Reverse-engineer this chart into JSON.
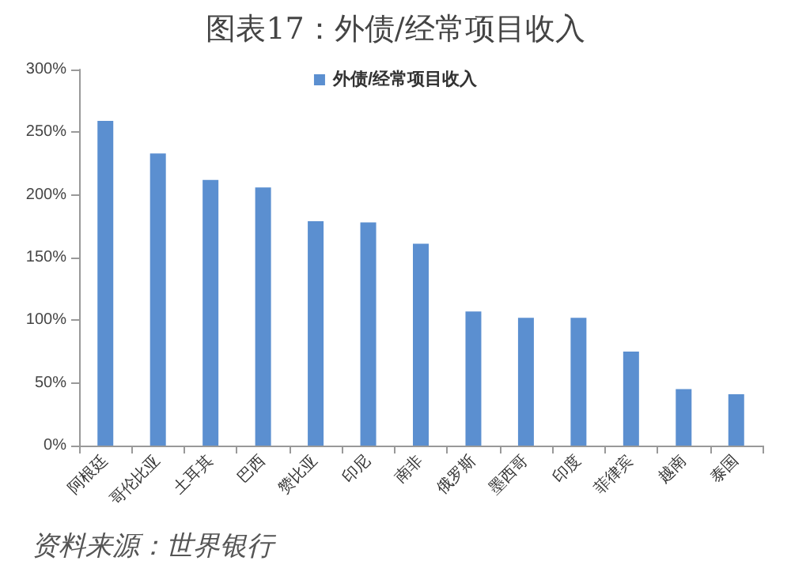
{
  "chart_data": {
    "type": "bar",
    "title": "图表17：外债/经常项目收入",
    "categories": [
      "阿根廷",
      "哥伦比亚",
      "土耳其",
      "巴西",
      "赞比亚",
      "印尼",
      "南非",
      "俄罗斯",
      "墨西哥",
      "印度",
      "菲律宾",
      "越南",
      "泰国"
    ],
    "series": [
      {
        "name": "外债/经常项目收入",
        "color": "#5b8fd0",
        "values": [
          259,
          233,
          212,
          206,
          179,
          178,
          161,
          107,
          102,
          102,
          75,
          45,
          41
        ]
      }
    ],
    "ylim": [
      0,
      300
    ],
    "yticks": [
      {
        "value": 0,
        "label": "0%"
      },
      {
        "value": 50,
        "label": "50%"
      },
      {
        "value": 100,
        "label": "100%"
      },
      {
        "value": 150,
        "label": "150%"
      },
      {
        "value": 200,
        "label": "200%"
      },
      {
        "value": 250,
        "label": "250%"
      },
      {
        "value": 300,
        "label": "300%"
      }
    ],
    "grid": false,
    "legend": "top",
    "annotations": [
      "资料来源：世界银行"
    ]
  }
}
